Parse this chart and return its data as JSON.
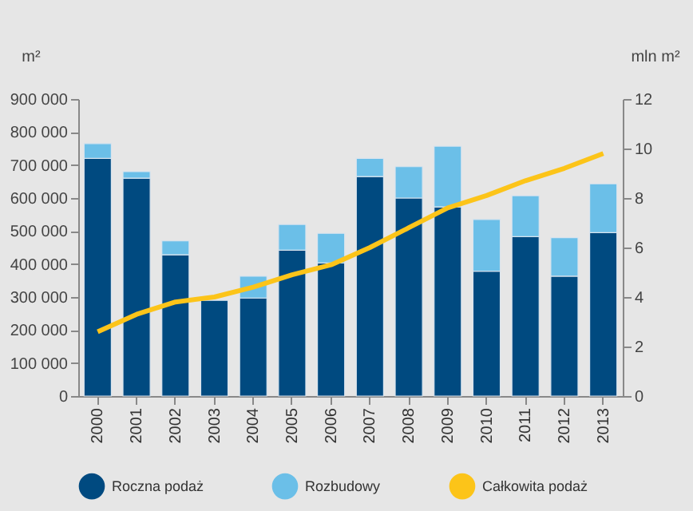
{
  "chart_data": {
    "type": "bar",
    "stacked": true,
    "ylabel": "m²",
    "y2label": "mln m²",
    "categories": [
      "2000",
      "2001",
      "2002",
      "2003",
      "2004",
      "2005",
      "2006",
      "2007",
      "2008",
      "2009",
      "2010",
      "2011",
      "2012",
      "2013"
    ],
    "series": [
      {
        "name": "Roczna podaż",
        "color": "#004a80",
        "values": [
          720000,
          660000,
          428000,
          290000,
          297000,
          442000,
          403000,
          665000,
          600000,
          573000,
          378000,
          483000,
          363000,
          495000
        ]
      },
      {
        "name": "Rozbudowy",
        "color": "#6bbfe8",
        "values": [
          45000,
          20000,
          42000,
          null,
          66000,
          78000,
          90000,
          55000,
          95000,
          184000,
          157000,
          124000,
          117000,
          148000
        ]
      },
      {
        "name": "Całkowita podaż",
        "color": "#fcc419",
        "type": "line",
        "axis": "y2",
        "values": [
          2.6,
          3.3,
          3.8,
          4.0,
          4.4,
          4.9,
          5.3,
          6.0,
          6.8,
          7.6,
          8.1,
          8.7,
          9.2,
          9.8
        ]
      }
    ],
    "ylim": [
      0,
      900000
    ],
    "yticks": [
      0,
      {
        "value": 100000,
        "label": "100 000"
      },
      {
        "value": 200000,
        "label": "200 000"
      },
      {
        "value": 300000,
        "label": "300 000"
      },
      {
        "value": 400000,
        "label": "400 000"
      },
      {
        "value": 500000,
        "label": "500 000"
      },
      {
        "value": 600000,
        "label": "600 000"
      },
      {
        "value": 700000,
        "label": "700 000"
      },
      {
        "value": 800000,
        "label": "800 000"
      },
      {
        "value": 900000,
        "label": "900 000"
      }
    ],
    "y2lim": [
      0,
      12
    ],
    "y2ticks": [
      0,
      2,
      4,
      6,
      8,
      10,
      12
    ],
    "legend": "bottom",
    "grid": false
  }
}
